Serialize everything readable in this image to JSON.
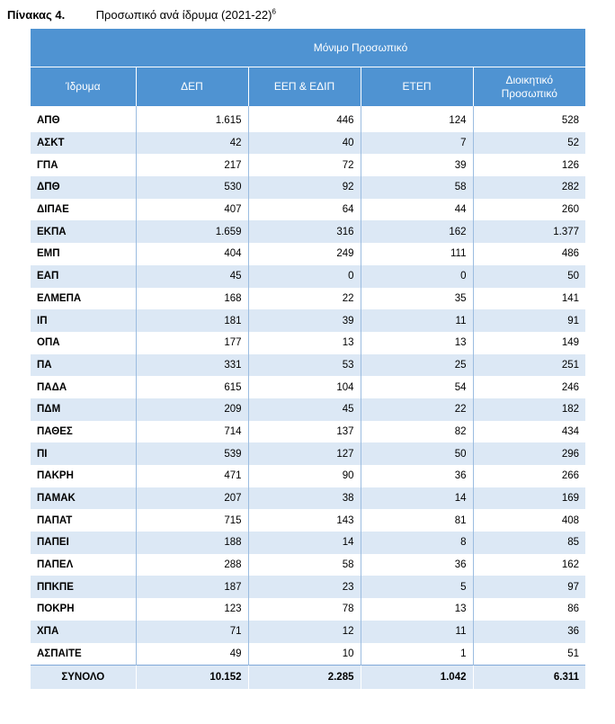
{
  "caption": {
    "number": "Πίνακας 4.",
    "title": "Προσωπικό ανά ίδρυμα (2021-22)",
    "footnote": "6"
  },
  "header": {
    "group": "Μόνιμο Προσωπικό",
    "columns": [
      "Ίδρυμα",
      "ΔΕΠ",
      "ΕΕΠ & ΕΔΙΠ",
      "ΕΤΕΠ",
      "Διοικητικό Προσωπικό"
    ]
  },
  "rows": [
    [
      "ΑΠΘ",
      "1.615",
      "446",
      "124",
      "528"
    ],
    [
      "ΑΣΚΤ",
      "42",
      "40",
      "7",
      "52"
    ],
    [
      "ΓΠΑ",
      "217",
      "72",
      "39",
      "126"
    ],
    [
      "ΔΠΘ",
      "530",
      "92",
      "58",
      "282"
    ],
    [
      "ΔΙΠΑΕ",
      "407",
      "64",
      "44",
      "260"
    ],
    [
      "ΕΚΠΑ",
      "1.659",
      "316",
      "162",
      "1.377"
    ],
    [
      "ΕΜΠ",
      "404",
      "249",
      "111",
      "486"
    ],
    [
      "ΕΑΠ",
      "45",
      "0",
      "0",
      "50"
    ],
    [
      "ΕΛΜΕΠΑ",
      "168",
      "22",
      "35",
      "141"
    ],
    [
      "ΙΠ",
      "181",
      "39",
      "11",
      "91"
    ],
    [
      "ΟΠΑ",
      "177",
      "13",
      "13",
      "149"
    ],
    [
      "ΠΑ",
      "331",
      "53",
      "25",
      "251"
    ],
    [
      "ΠΑΔΑ",
      "615",
      "104",
      "54",
      "246"
    ],
    [
      "ΠΔΜ",
      "209",
      "45",
      "22",
      "182"
    ],
    [
      "ΠΑΘΕΣ",
      "714",
      "137",
      "82",
      "434"
    ],
    [
      "ΠΙ",
      "539",
      "127",
      "50",
      "296"
    ],
    [
      "ΠΑΚΡΗ",
      "471",
      "90",
      "36",
      "266"
    ],
    [
      "ΠΑΜΑΚ",
      "207",
      "38",
      "14",
      "169"
    ],
    [
      "ΠΑΠΑΤ",
      "715",
      "143",
      "81",
      "408"
    ],
    [
      "ΠΑΠΕΙ",
      "188",
      "14",
      "8",
      "85"
    ],
    [
      "ΠΑΠΕΛ",
      "288",
      "58",
      "36",
      "162"
    ],
    [
      "ΠΠΚΠΕ",
      "187",
      "23",
      "5",
      "97"
    ],
    [
      "ΠΟΚΡΗ",
      "123",
      "78",
      "13",
      "86"
    ],
    [
      "ΧΠΑ",
      "71",
      "12",
      "11",
      "36"
    ],
    [
      "ΑΣΠΑΙΤΕ",
      "49",
      "10",
      "1",
      "51"
    ]
  ],
  "total": [
    "ΣΥΝΟΛΟ",
    "10.152",
    "2.285",
    "1.042",
    "6.311"
  ]
}
